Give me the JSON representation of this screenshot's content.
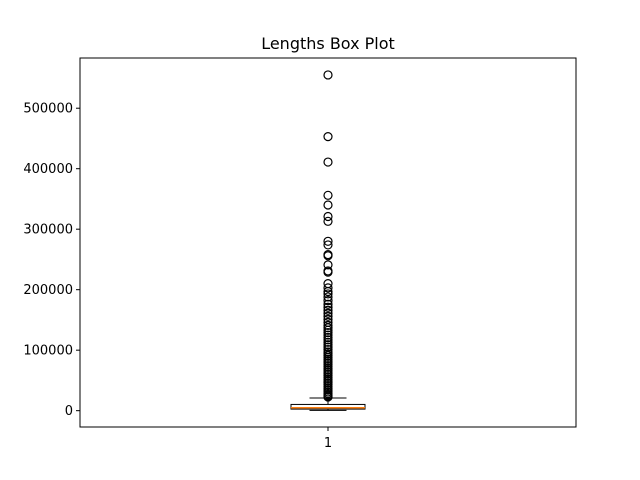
{
  "chart_data": {
    "type": "box",
    "title": "Lengths Box Plot",
    "xlabel": "",
    "ylabel": "",
    "categories": [
      "1"
    ],
    "ylim": [
      -27000,
      583000
    ],
    "y_ticks": [
      0,
      100000,
      200000,
      300000,
      400000,
      500000
    ],
    "y_tick_labels": [
      "0",
      "100000",
      "200000",
      "300000",
      "400000",
      "500000"
    ],
    "box": {
      "whisker_low": 400,
      "q1": 2600,
      "median": 4900,
      "q3": 10300,
      "whisker_high": 21000
    },
    "outliers": [
      555000,
      453000,
      411000,
      356000,
      340000,
      321000,
      313000,
      280000,
      274000,
      258000,
      256000,
      241000,
      231000,
      229000,
      210000,
      203000,
      197000,
      193000,
      188000,
      182000,
      176000,
      171000,
      166000,
      161000,
      156000,
      151000,
      146000,
      141000,
      137000,
      133000,
      129000,
      125000,
      121000,
      117000,
      113000,
      109000,
      105000,
      101000,
      97000,
      94000,
      91000,
      88000,
      85000,
      82000,
      79000,
      76000,
      73000,
      70000,
      67000,
      64000,
      61000,
      58000,
      55000,
      52000,
      49000,
      46000,
      43000,
      40000,
      37000,
      34000,
      31000,
      28500,
      26000,
      24000,
      22500
    ],
    "colors": {
      "median": "#ff7f0e",
      "box": "#000000",
      "outlier_edge": "#000000"
    },
    "grid": false
  }
}
